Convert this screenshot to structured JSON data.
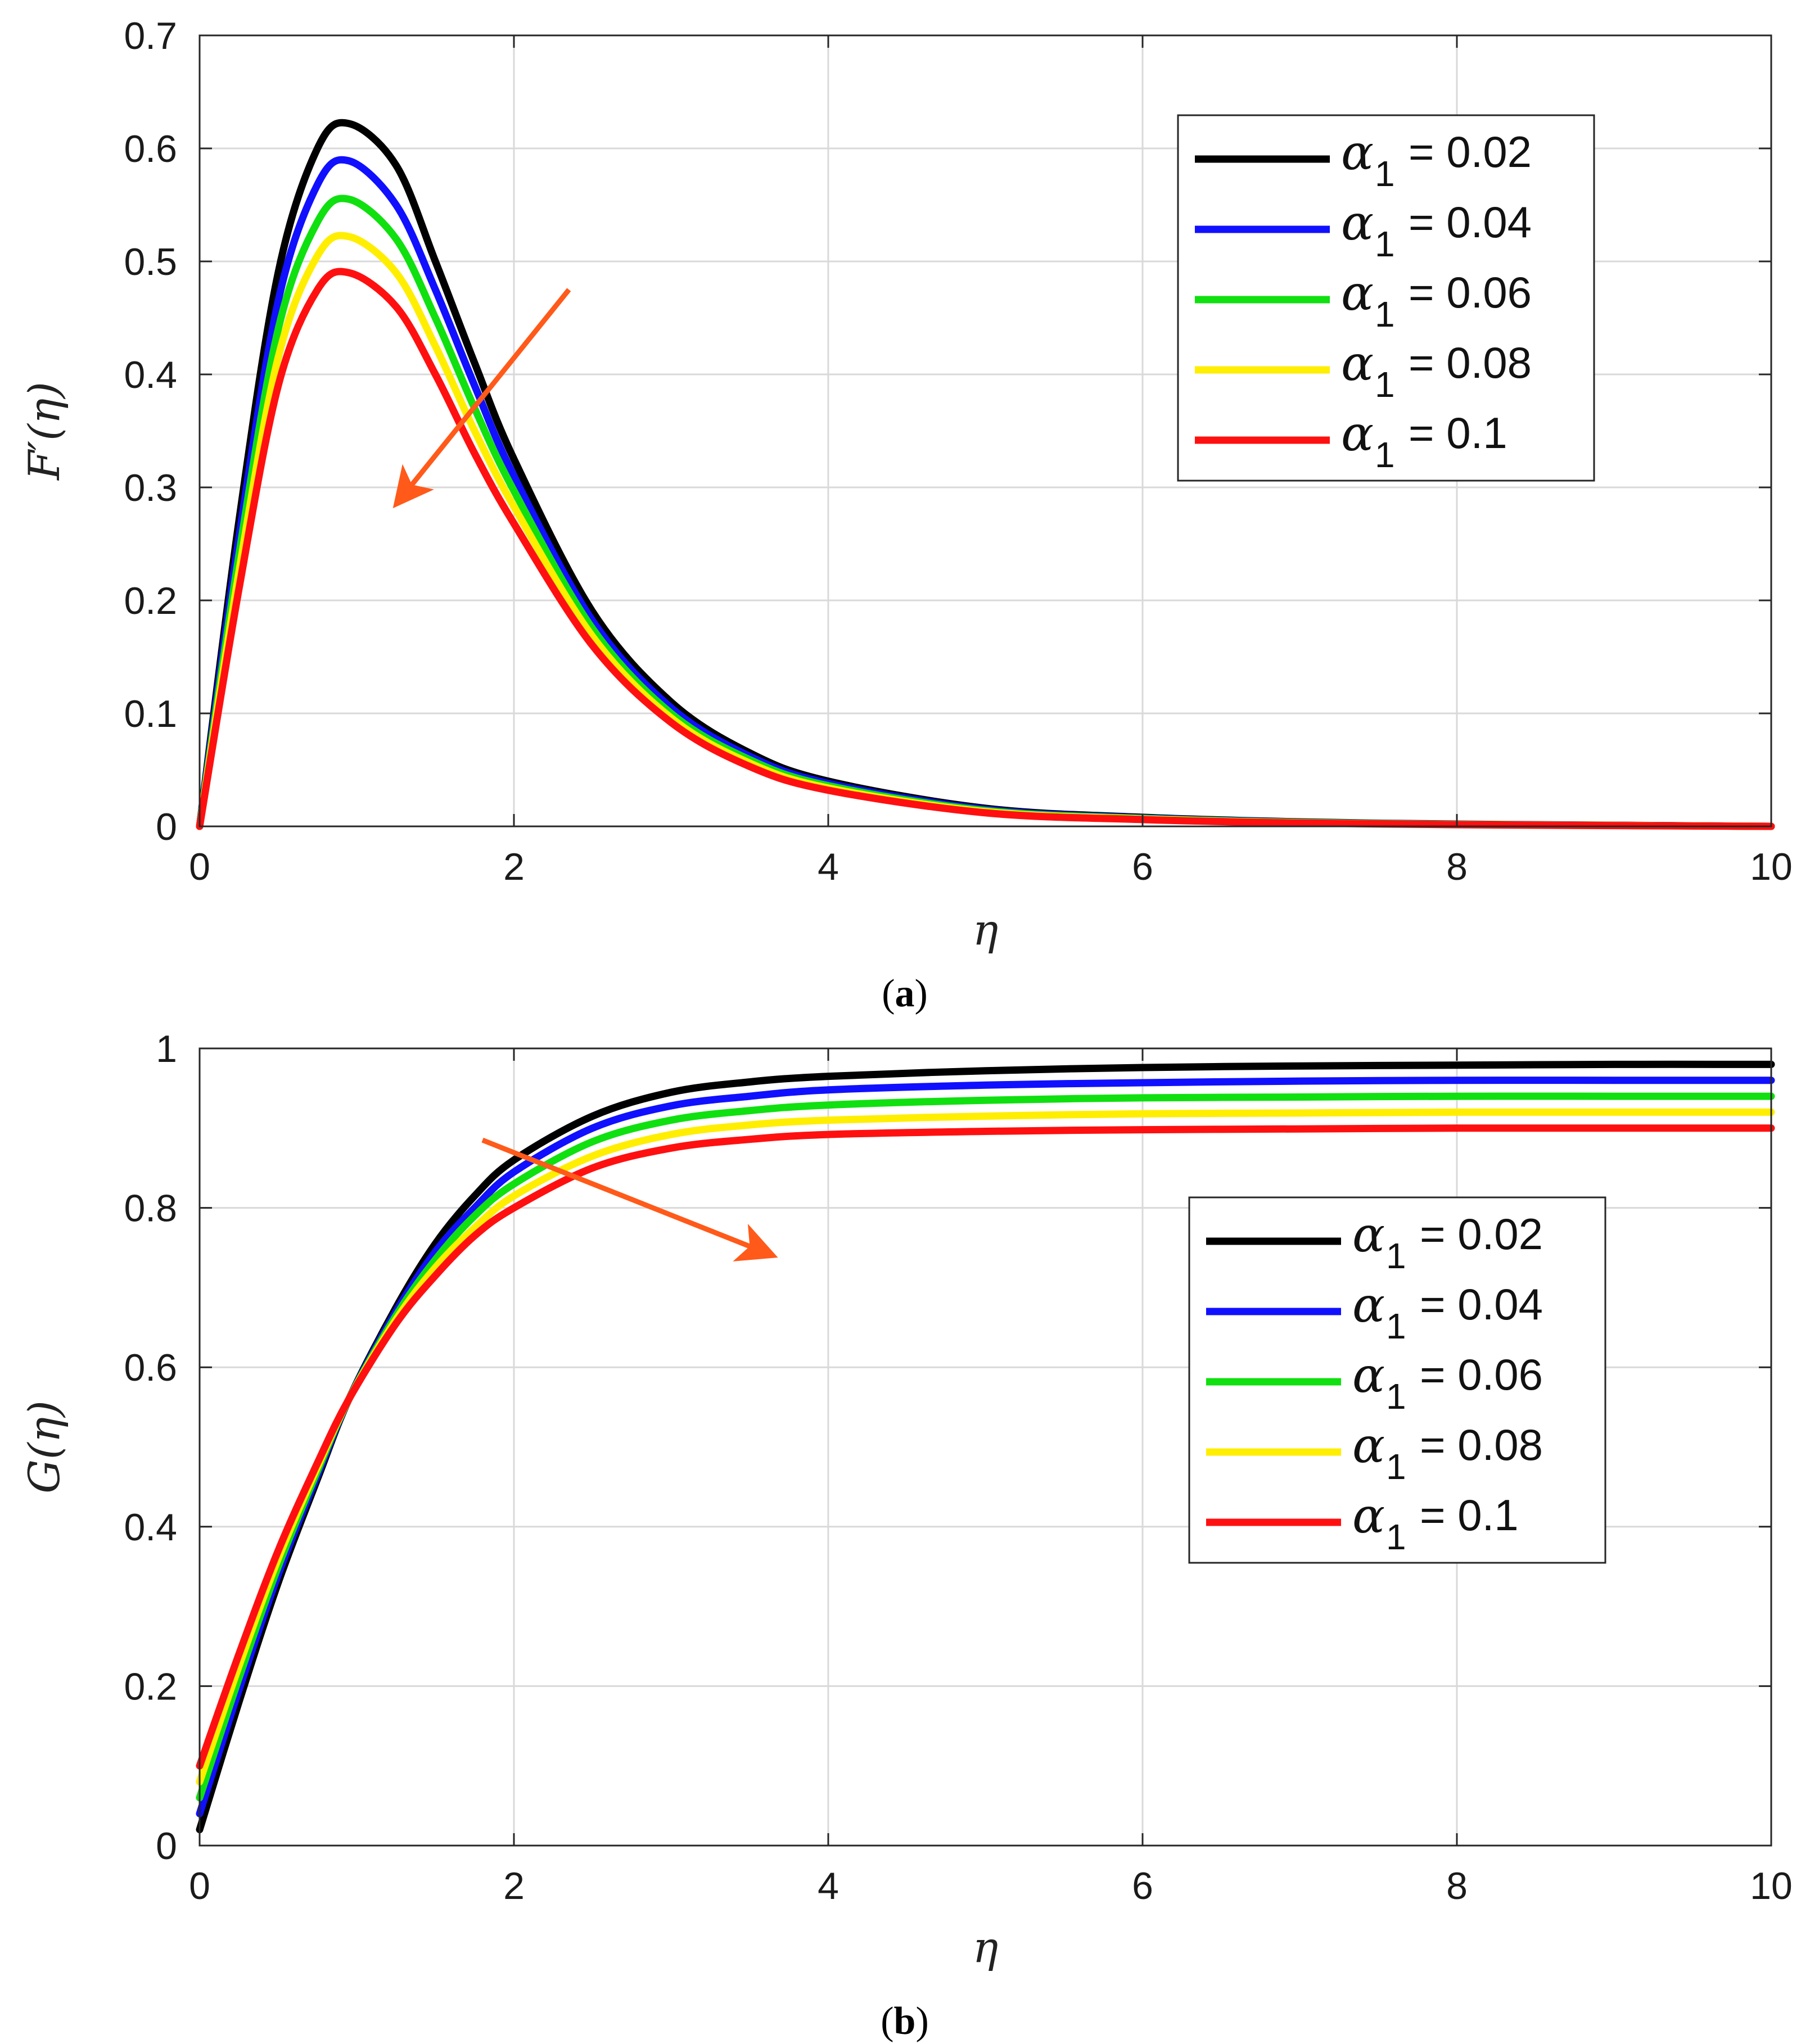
{
  "chart_data": [
    {
      "type": "line",
      "panel": "a",
      "caption_open": "(",
      "caption_letter": "a",
      "caption_close": ")",
      "xlabel": "η",
      "ylabel": "F′(η)",
      "xlim": [
        0,
        10
      ],
      "ylim": [
        0,
        0.7
      ],
      "xticks": [
        0,
        2,
        4,
        6,
        8,
        10
      ],
      "yticks": [
        0,
        0.1,
        0.2,
        0.3,
        0.4,
        0.5,
        0.6,
        0.7
      ],
      "xtick_labels": [
        "0",
        "2",
        "4",
        "6",
        "8",
        "10"
      ],
      "ytick_labels": [
        "0",
        "0.1",
        "0.2",
        "0.3",
        "0.4",
        "0.5",
        "0.6",
        "0.7"
      ],
      "grid": true,
      "legend_position": "top-right",
      "trend_arrow": "decreasing",
      "arrow_from": [
        2.35,
        0.475
      ],
      "arrow_to": [
        1.25,
        0.285
      ],
      "x": [
        0,
        0.25,
        0.5,
        0.75,
        0.95,
        1.25,
        1.5,
        1.75,
        2,
        2.5,
        3,
        3.5,
        4,
        5,
        6,
        7,
        8,
        9,
        10
      ],
      "series": [
        {
          "name": "α1 = 0.02",
          "param": "α",
          "sub": "1",
          "value_text": "= 0.02",
          "color": "#000000",
          "values": [
            0,
            0.27,
            0.49,
            0.6,
            0.622,
            0.585,
            0.5,
            0.41,
            0.325,
            0.19,
            0.11,
            0.065,
            0.04,
            0.016,
            0.008,
            0.004,
            0.002,
            0.001,
            0
          ]
        },
        {
          "name": "α1 = 0.04",
          "param": "α",
          "sub": "1",
          "value_text": "= 0.04",
          "color": "#1010ff",
          "values": [
            0,
            0.255,
            0.465,
            0.568,
            0.589,
            0.55,
            0.475,
            0.39,
            0.31,
            0.182,
            0.105,
            0.062,
            0.038,
            0.015,
            0.0075,
            0.0037,
            0.0018,
            0.0009,
            0
          ]
        },
        {
          "name": "α1 = 0.06",
          "param": "α",
          "sub": "1",
          "value_text": "= 0.06",
          "color": "#10e010",
          "values": [
            0,
            0.24,
            0.44,
            0.535,
            0.555,
            0.52,
            0.45,
            0.37,
            0.297,
            0.175,
            0.1,
            0.059,
            0.036,
            0.014,
            0.007,
            0.0035,
            0.0017,
            0.0008,
            0
          ]
        },
        {
          "name": "α1 = 0.08",
          "param": "α",
          "sub": "1",
          "value_text": "= 0.08",
          "color": "#ffee00",
          "values": [
            0,
            0.225,
            0.415,
            0.505,
            0.522,
            0.49,
            0.425,
            0.35,
            0.283,
            0.168,
            0.096,
            0.056,
            0.034,
            0.013,
            0.0065,
            0.0032,
            0.0016,
            0.0008,
            0
          ]
        },
        {
          "name": "α1 = 0.1",
          "param": "α",
          "sub": "1",
          "value_text": "= 0.1",
          "color": "#ff1010",
          "values": [
            0,
            0.21,
            0.39,
            0.475,
            0.49,
            0.46,
            0.4,
            0.33,
            0.268,
            0.16,
            0.092,
            0.053,
            0.032,
            0.012,
            0.006,
            0.003,
            0.0015,
            0.0007,
            0
          ]
        }
      ]
    },
    {
      "type": "line",
      "panel": "b",
      "caption_open": "(",
      "caption_letter": "b",
      "caption_close": ")",
      "xlabel": "η",
      "ylabel": "G(η)",
      "xlim": [
        0,
        10
      ],
      "ylim": [
        0,
        1
      ],
      "xticks": [
        0,
        2,
        4,
        6,
        8,
        10
      ],
      "yticks": [
        0,
        0.2,
        0.4,
        0.6,
        0.8,
        1
      ],
      "xtick_labels": [
        "0",
        "2",
        "4",
        "6",
        "8",
        "10"
      ],
      "ytick_labels": [
        "0",
        "0.2",
        "0.4",
        "0.6",
        "0.8",
        "1"
      ],
      "grid": true,
      "legend_position": "center-right",
      "trend_arrow": "decreasing",
      "arrow_from": [
        1.8,
        0.885
      ],
      "arrow_to": [
        3.65,
        0.74
      ],
      "x": [
        0,
        0.25,
        0.5,
        0.75,
        0.95,
        1.25,
        1.5,
        1.75,
        2,
        2.5,
        3,
        3.5,
        4,
        5,
        6,
        7,
        8,
        9,
        10
      ],
      "series": [
        {
          "name": "α1 = 0.02",
          "param": "α",
          "sub": "1",
          "value_text": "= 0.02",
          "color": "#000000",
          "values": [
            0.02,
            0.18,
            0.33,
            0.46,
            0.56,
            0.675,
            0.755,
            0.815,
            0.86,
            0.915,
            0.945,
            0.958,
            0.965,
            0.972,
            0.976,
            0.978,
            0.979,
            0.98,
            0.98
          ]
        },
        {
          "name": "α1 = 0.04",
          "param": "α",
          "sub": "1",
          "value_text": "= 0.04",
          "color": "#1010ff",
          "values": [
            0.04,
            0.195,
            0.34,
            0.465,
            0.56,
            0.67,
            0.745,
            0.8,
            0.845,
            0.9,
            0.928,
            0.94,
            0.948,
            0.954,
            0.957,
            0.959,
            0.96,
            0.96,
            0.96
          ]
        },
        {
          "name": "α1 = 0.06",
          "param": "α",
          "sub": "1",
          "value_text": "= 0.06",
          "color": "#10e010",
          "values": [
            0.06,
            0.21,
            0.35,
            0.47,
            0.56,
            0.665,
            0.735,
            0.79,
            0.83,
            0.883,
            0.91,
            0.922,
            0.929,
            0.935,
            0.938,
            0.939,
            0.94,
            0.94,
            0.94
          ]
        },
        {
          "name": "α1 = 0.08",
          "param": "α",
          "sub": "1",
          "value_text": "= 0.08",
          "color": "#ffee00",
          "values": [
            0.08,
            0.225,
            0.36,
            0.475,
            0.56,
            0.66,
            0.725,
            0.775,
            0.815,
            0.865,
            0.892,
            0.904,
            0.91,
            0.915,
            0.918,
            0.919,
            0.92,
            0.92,
            0.92
          ]
        },
        {
          "name": "α1 = 0.1",
          "param": "α",
          "sub": "1",
          "value_text": "= 0.1",
          "color": "#ff1010",
          "values": [
            0.1,
            0.24,
            0.37,
            0.48,
            0.56,
            0.655,
            0.715,
            0.765,
            0.8,
            0.85,
            0.875,
            0.886,
            0.892,
            0.896,
            0.898,
            0.899,
            0.9,
            0.9,
            0.9
          ]
        }
      ]
    }
  ]
}
